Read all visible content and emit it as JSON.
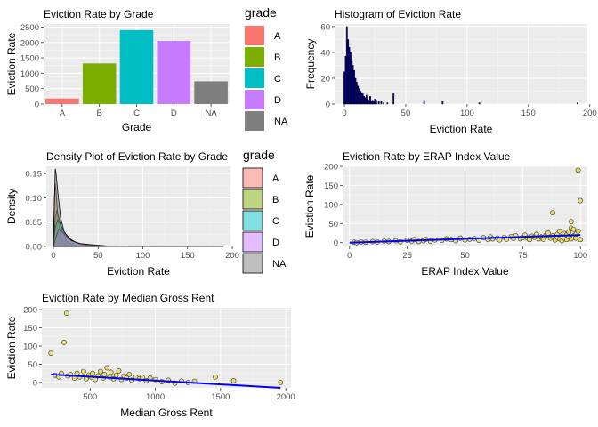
{
  "colors": {
    "A": "#F8766D",
    "B": "#7CAE00",
    "C": "#00BFC4",
    "D": "#C77CFF",
    "NA": "#7F7F7F",
    "panel": "#EBEBEB",
    "hist_fill": "#00008B",
    "point_fill": "#E8E06A",
    "line": "#0000FF"
  },
  "chart_data": [
    {
      "type": "bar",
      "title": "Eviction Rate by Grade",
      "xlabel": "Grade",
      "ylabel": "Eviction Rate",
      "categories": [
        "A",
        "B",
        "C",
        "D",
        "NA"
      ],
      "values": [
        180,
        1320,
        2400,
        2050,
        740
      ],
      "ylim": [
        0,
        2600
      ],
      "yticks": [
        0,
        500,
        1000,
        1500,
        2000,
        2500
      ],
      "legend": {
        "title": "grade",
        "entries": [
          "A",
          "B",
          "C",
          "D",
          "NA"
        ],
        "position": "right"
      }
    },
    {
      "type": "bar",
      "title": "Histogram of Eviction Rate",
      "xlabel": "Eviction Rate",
      "ylabel": "Frequency",
      "xlim": [
        -8,
        198
      ],
      "ylim": [
        0,
        62
      ],
      "xticks": [
        0,
        50,
        100,
        150,
        200
      ],
      "yticks": [
        0,
        20,
        40,
        60
      ],
      "binwidth": 1,
      "bins": [
        {
          "x": 0,
          "y": 25
        },
        {
          "x": 1,
          "y": 37
        },
        {
          "x": 2,
          "y": 60
        },
        {
          "x": 3,
          "y": 50
        },
        {
          "x": 4,
          "y": 44
        },
        {
          "x": 5,
          "y": 40
        },
        {
          "x": 6,
          "y": 33
        },
        {
          "x": 7,
          "y": 30
        },
        {
          "x": 8,
          "y": 26
        },
        {
          "x": 9,
          "y": 20
        },
        {
          "x": 10,
          "y": 17
        },
        {
          "x": 11,
          "y": 14
        },
        {
          "x": 12,
          "y": 12
        },
        {
          "x": 13,
          "y": 10
        },
        {
          "x": 14,
          "y": 9
        },
        {
          "x": 15,
          "y": 8
        },
        {
          "x": 16,
          "y": 6
        },
        {
          "x": 17,
          "y": 5
        },
        {
          "x": 18,
          "y": 7
        },
        {
          "x": 19,
          "y": 4
        },
        {
          "x": 20,
          "y": 3
        },
        {
          "x": 21,
          "y": 6
        },
        {
          "x": 22,
          "y": 2
        },
        {
          "x": 23,
          "y": 3
        },
        {
          "x": 24,
          "y": 2
        },
        {
          "x": 25,
          "y": 4
        },
        {
          "x": 26,
          "y": 3
        },
        {
          "x": 28,
          "y": 2
        },
        {
          "x": 30,
          "y": 2
        },
        {
          "x": 32,
          "y": 1
        },
        {
          "x": 35,
          "y": 1
        },
        {
          "x": 40,
          "y": 8
        },
        {
          "x": 65,
          "y": 3
        },
        {
          "x": 80,
          "y": 2
        },
        {
          "x": 110,
          "y": 1
        },
        {
          "x": 190,
          "y": 1
        }
      ]
    },
    {
      "type": "area",
      "title": "Density Plot of Eviction Rate by Grade",
      "xlabel": "Eviction Rate",
      "ylabel": "Density",
      "xlim": [
        -8,
        198
      ],
      "ylim": [
        0,
        0.165
      ],
      "xticks": [
        0,
        50,
        100,
        150,
        200
      ],
      "yticks": [
        0.0,
        0.05,
        0.1,
        0.15
      ],
      "ytick_labels": [
        "0.00",
        "0.05",
        "0.10",
        "0.15"
      ],
      "series": [
        {
          "name": "A",
          "points": [
            [
              0,
              0.005
            ],
            [
              1,
              0.1
            ],
            [
              2,
              0.13
            ],
            [
              3,
              0.11
            ],
            [
              5,
              0.06
            ],
            [
              8,
              0.02
            ],
            [
              12,
              0.005
            ],
            [
              20,
              0.0
            ]
          ]
        },
        {
          "name": "B",
          "points": [
            [
              0,
              0.005
            ],
            [
              2,
              0.06
            ],
            [
              4,
              0.075
            ],
            [
              6,
              0.06
            ],
            [
              10,
              0.03
            ],
            [
              15,
              0.01
            ],
            [
              25,
              0.0
            ]
          ]
        },
        {
          "name": "C",
          "points": [
            [
              0,
              0.005
            ],
            [
              2,
              0.04
            ],
            [
              5,
              0.055
            ],
            [
              8,
              0.045
            ],
            [
              12,
              0.03
            ],
            [
              18,
              0.015
            ],
            [
              30,
              0.004
            ],
            [
              40,
              0.0
            ]
          ]
        },
        {
          "name": "D",
          "points": [
            [
              0,
              0.0
            ],
            [
              3,
              0.02
            ],
            [
              6,
              0.035
            ],
            [
              10,
              0.03
            ],
            [
              15,
              0.02
            ],
            [
              25,
              0.008
            ],
            [
              40,
              0.002
            ],
            [
              60,
              0.0
            ]
          ]
        },
        {
          "name": "NA",
          "points": [
            [
              0,
              0.01
            ],
            [
              2,
              0.16
            ],
            [
              3,
              0.15
            ],
            [
              5,
              0.11
            ],
            [
              8,
              0.06
            ],
            [
              12,
              0.03
            ],
            [
              20,
              0.012
            ],
            [
              30,
              0.006
            ],
            [
              40,
              0.004
            ],
            [
              60,
              0.001
            ],
            [
              110,
              0.0005
            ],
            [
              190,
              0.0003
            ]
          ]
        }
      ],
      "legend": {
        "title": "grade",
        "entries": [
          "A",
          "B",
          "C",
          "D",
          "NA"
        ],
        "position": "right"
      }
    },
    {
      "type": "scatter",
      "title": "Eviction Rate by ERAP Index Value",
      "xlabel": "ERAP Index Value",
      "ylabel": "Eviction Rate",
      "xlim": [
        -3,
        103
      ],
      "ylim": [
        -10,
        200
      ],
      "xticks": [
        0,
        25,
        50,
        75,
        100
      ],
      "yticks": [
        0,
        50,
        100,
        150,
        200
      ],
      "trend": [
        [
          0,
          0
        ],
        [
          100,
          20
        ]
      ],
      "points": [
        [
          2,
          1
        ],
        [
          3,
          0
        ],
        [
          5,
          2
        ],
        [
          7,
          1
        ],
        [
          10,
          3
        ],
        [
          12,
          2
        ],
        [
          15,
          4
        ],
        [
          17,
          3
        ],
        [
          20,
          5
        ],
        [
          22,
          2
        ],
        [
          25,
          6
        ],
        [
          27,
          4
        ],
        [
          28,
          8
        ],
        [
          30,
          3
        ],
        [
          32,
          5
        ],
        [
          33,
          9
        ],
        [
          35,
          4
        ],
        [
          37,
          7
        ],
        [
          40,
          6
        ],
        [
          42,
          10
        ],
        [
          44,
          8
        ],
        [
          46,
          5
        ],
        [
          48,
          12
        ],
        [
          50,
          7
        ],
        [
          52,
          9
        ],
        [
          54,
          11
        ],
        [
          56,
          6
        ],
        [
          58,
          13
        ],
        [
          60,
          8
        ],
        [
          61,
          15
        ],
        [
          62,
          10
        ],
        [
          64,
          12
        ],
        [
          65,
          7
        ],
        [
          67,
          14
        ],
        [
          68,
          9
        ],
        [
          70,
          16
        ],
        [
          71,
          11
        ],
        [
          72,
          18
        ],
        [
          74,
          10
        ],
        [
          75,
          13
        ],
        [
          76,
          20
        ],
        [
          77,
          12
        ],
        [
          78,
          8
        ],
        [
          79,
          17
        ],
        [
          80,
          14
        ],
        [
          81,
          22
        ],
        [
          82,
          10
        ],
        [
          83,
          15
        ],
        [
          84,
          9
        ],
        [
          85,
          19
        ],
        [
          86,
          25
        ],
        [
          87,
          12
        ],
        [
          88,
          78
        ],
        [
          88,
          18
        ],
        [
          89,
          7
        ],
        [
          90,
          22
        ],
        [
          90,
          14
        ],
        [
          91,
          30
        ],
        [
          91,
          10
        ],
        [
          92,
          16
        ],
        [
          92,
          5
        ],
        [
          93,
          12
        ],
        [
          93,
          24
        ],
        [
          94,
          20
        ],
        [
          94,
          8
        ],
        [
          95,
          28
        ],
        [
          95,
          15
        ],
        [
          96,
          55
        ],
        [
          96,
          38
        ],
        [
          96,
          10
        ],
        [
          97,
          18
        ],
        [
          97,
          35
        ],
        [
          98,
          12
        ],
        [
          98,
          22
        ],
        [
          99,
          190
        ],
        [
          99,
          30
        ],
        [
          100,
          110
        ],
        [
          100,
          8
        ]
      ]
    },
    {
      "type": "scatter",
      "title": "Eviction Rate by Median Gross Rent",
      "xlabel": "Median Gross Rent",
      "ylabel": "Eviction Rate",
      "xlim": [
        130,
        2040
      ],
      "ylim": [
        -15,
        205
      ],
      "xticks": [
        500,
        1000,
        1500,
        2000
      ],
      "yticks": [
        0,
        50,
        100,
        150,
        200
      ],
      "trend": [
        [
          200,
          22
        ],
        [
          1960,
          -15
        ]
      ],
      "points": [
        [
          200,
          80
        ],
        [
          230,
          20
        ],
        [
          260,
          15
        ],
        [
          280,
          25
        ],
        [
          300,
          110
        ],
        [
          320,
          190
        ],
        [
          330,
          18
        ],
        [
          350,
          22
        ],
        [
          380,
          12
        ],
        [
          400,
          25
        ],
        [
          420,
          15
        ],
        [
          450,
          30
        ],
        [
          470,
          10
        ],
        [
          490,
          20
        ],
        [
          510,
          14
        ],
        [
          520,
          25
        ],
        [
          540,
          8
        ],
        [
          560,
          18
        ],
        [
          580,
          30
        ],
        [
          600,
          12
        ],
        [
          610,
          22
        ],
        [
          630,
          40
        ],
        [
          650,
          15
        ],
        [
          660,
          28
        ],
        [
          680,
          10
        ],
        [
          700,
          20
        ],
        [
          720,
          32
        ],
        [
          740,
          8
        ],
        [
          760,
          18
        ],
        [
          780,
          12
        ],
        [
          800,
          22
        ],
        [
          820,
          6
        ],
        [
          850,
          15
        ],
        [
          880,
          10
        ],
        [
          900,
          14
        ],
        [
          930,
          5
        ],
        [
          960,
          12
        ],
        [
          1000,
          8
        ],
        [
          1050,
          2
        ],
        [
          1100,
          6
        ],
        [
          1150,
          -2
        ],
        [
          1200,
          4
        ],
        [
          1250,
          0
        ],
        [
          1300,
          3
        ],
        [
          1460,
          15
        ],
        [
          1600,
          5
        ],
        [
          1960,
          0
        ]
      ]
    }
  ]
}
